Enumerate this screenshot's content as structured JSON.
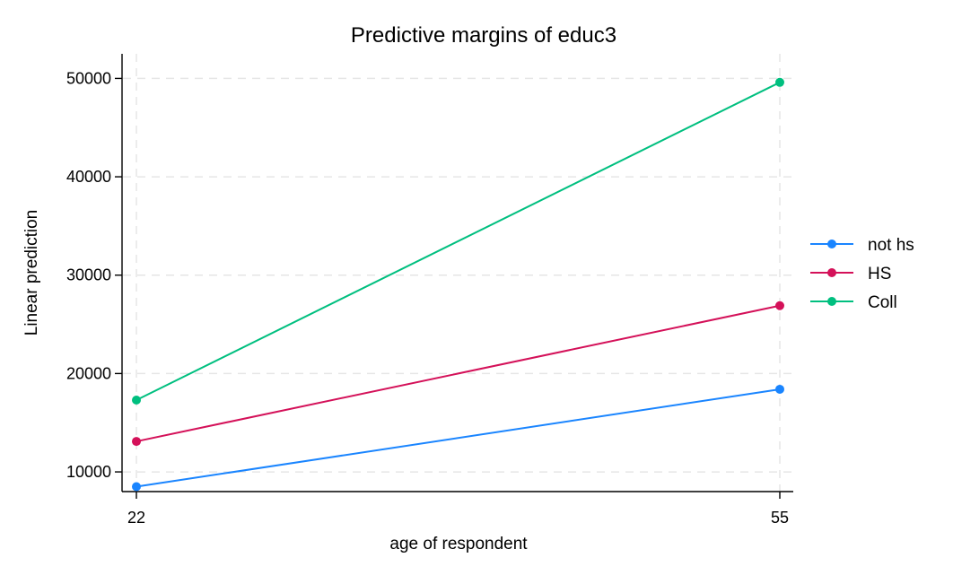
{
  "chart_data": {
    "type": "line",
    "title": "Predictive margins of educ3",
    "xlabel": "age of respondent",
    "ylabel": "Linear prediction",
    "x": [
      22,
      55
    ],
    "x_ticks": [
      "22",
      "55"
    ],
    "y_ticks": [
      "10000",
      "20000",
      "30000",
      "40000",
      "50000"
    ],
    "ylim": [
      8000,
      52500
    ],
    "xlim": [
      22,
      55
    ],
    "grid": true,
    "legend_position": "right",
    "series": [
      {
        "name": "not hs",
        "values": [
          8500,
          18400
        ],
        "color": "#1a85ff"
      },
      {
        "name": "HS",
        "values": [
          13100,
          26900
        ],
        "color": "#d41159"
      },
      {
        "name": "Coll",
        "values": [
          17300,
          49600
        ],
        "color": "#00bf7f"
      }
    ]
  }
}
